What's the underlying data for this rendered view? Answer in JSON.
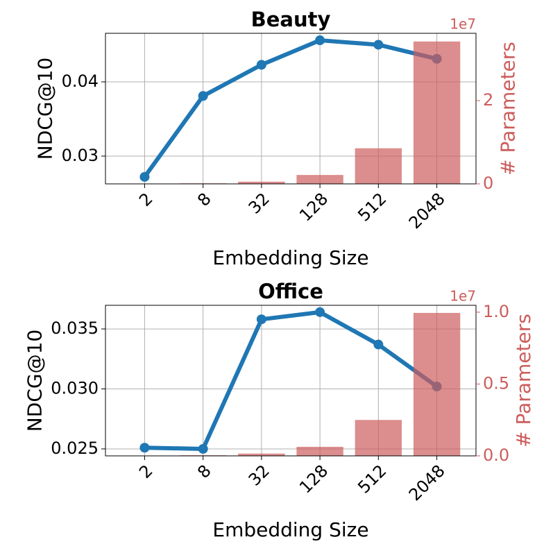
{
  "chart_data": [
    {
      "type": "combo",
      "title": "Beauty",
      "x_label": "Embedding Size",
      "y_label": "NDCG@10",
      "y2_label": "# Parameters",
      "y2_offset": "1e7",
      "categories": [
        "2",
        "8",
        "32",
        "128",
        "512",
        "2048"
      ],
      "line": {
        "color": "#1f77b4",
        "values": [
          0.0272,
          0.0381,
          0.0423,
          0.0456,
          0.045,
          0.0431
        ]
      },
      "bars": {
        "color": "#cd5c5c",
        "axis": "y2",
        "values": [
          0.0033,
          0.013,
          0.053,
          0.214,
          0.855,
          3.42
        ]
      },
      "ylim": [
        0.02626,
        0.04654
      ],
      "yticks": [
        0.03,
        0.04
      ],
      "y2lim": [
        0,
        3.617
      ],
      "y2ticks": [
        0,
        2
      ],
      "grid": true
    },
    {
      "type": "combo",
      "title": "Office",
      "x_label": "Embedding Size",
      "y_label": "NDCG@10",
      "y2_label": "# Parameters",
      "y2_offset": "1e7",
      "categories": [
        "2",
        "8",
        "32",
        "128",
        "512",
        "2048"
      ],
      "line": {
        "color": "#1f77b4",
        "values": [
          0.0251,
          0.025,
          0.0358,
          0.0364,
          0.0337,
          0.0302
        ]
      },
      "bars": {
        "color": "#cd5c5c",
        "axis": "y2",
        "values": [
          0.001,
          0.004,
          0.016,
          0.063,
          0.25,
          0.995
        ]
      },
      "ylim": [
        0.02442,
        0.03697
      ],
      "yticks": [
        0.025,
        {
          "value": 0.03,
          "label": "0.030"
        },
        0.035
      ],
      "y2lim": [
        0,
        1.048
      ],
      "y2ticks": [
        {
          "value": 0,
          "label": "0.0"
        },
        {
          "value": 0.5,
          "label": "0.5"
        },
        {
          "value": 1,
          "label": "1.0"
        }
      ],
      "grid": true
    }
  ]
}
